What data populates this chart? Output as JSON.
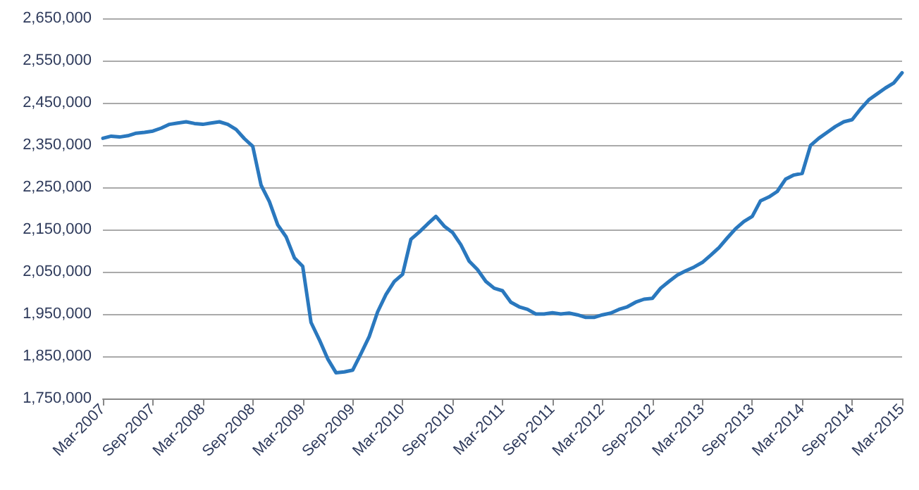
{
  "chart_data": {
    "type": "line",
    "categories": [
      "Mar-2007",
      null,
      null,
      null,
      null,
      null,
      "Sep-2007",
      null,
      null,
      null,
      null,
      null,
      "Mar-2008",
      null,
      null,
      null,
      null,
      null,
      "Sep-2008",
      null,
      null,
      null,
      null,
      null,
      "Mar-2009",
      null,
      null,
      null,
      null,
      null,
      "Sep-2009",
      null,
      null,
      null,
      null,
      null,
      "Mar-2010",
      null,
      null,
      null,
      null,
      null,
      "Sep-2010",
      null,
      null,
      null,
      null,
      null,
      "Mar-2011",
      null,
      null,
      null,
      null,
      null,
      "Sep-2011",
      null,
      null,
      null,
      null,
      null,
      "Mar-2012",
      null,
      null,
      null,
      null,
      null,
      "Sep-2012",
      null,
      null,
      null,
      null,
      null,
      "Mar-2013",
      null,
      null,
      null,
      null,
      null,
      "Sep-2013",
      null,
      null,
      null,
      null,
      null,
      "Mar-2014",
      null,
      null,
      null,
      null,
      null,
      "Sep-2014",
      null,
      null,
      null,
      null,
      null,
      "Mar-2015"
    ],
    "series": [
      {
        "color": "#2a78be",
        "values": [
          2366000,
          2371000,
          2369000,
          2372000,
          2378000,
          2380000,
          2383000,
          2390000,
          2399000,
          2402000,
          2405000,
          2401000,
          2399000,
          2402000,
          2405000,
          2399000,
          2387000,
          2365000,
          2347000,
          2255000,
          2216000,
          2161000,
          2133000,
          2083000,
          2063000,
          1930000,
          1889000,
          1844000,
          1811000,
          1813000,
          1817000,
          1856000,
          1897000,
          1955000,
          1996000,
          2027000,
          2044000,
          2127000,
          2144000,
          2163000,
          2181000,
          2158000,
          2143000,
          2114000,
          2075000,
          2055000,
          2027000,
          2011000,
          2005000,
          1978000,
          1967000,
          1961000,
          1950000,
          1950000,
          1953000,
          1950000,
          1952000,
          1948000,
          1942000,
          1942000,
          1948000,
          1952000,
          1961000,
          1967000,
          1978000,
          1985000,
          1987000,
          2011000,
          2027000,
          2042000,
          2052000,
          2061000,
          2072000,
          2089000,
          2107000,
          2130000,
          2152000,
          2169000,
          2181000,
          2218000,
          2227000,
          2240000,
          2269000,
          2279000,
          2283000,
          2349000,
          2366000,
          2380000,
          2394000,
          2405000,
          2410000,
          2435000,
          2457000,
          2471000,
          2485000,
          2497000,
          2521000
        ]
      }
    ],
    "ylim": [
      1750000,
      2650000
    ],
    "yticks": [
      {
        "value": 1750000,
        "label": "1,750,000"
      },
      {
        "value": 1850000,
        "label": "1,850,000"
      },
      {
        "value": 1950000,
        "label": "1,950,000"
      },
      {
        "value": 2050000,
        "label": "2,050,000"
      },
      {
        "value": 2150000,
        "label": "2,150,000"
      },
      {
        "value": 2250000,
        "label": "2,250,000"
      },
      {
        "value": 2350000,
        "label": "2,350,000"
      },
      {
        "value": 2450000,
        "label": "2,450,000"
      },
      {
        "value": 2550000,
        "label": "2,550,000"
      },
      {
        "value": 2650000,
        "label": "2,650,000"
      }
    ],
    "grid": "y",
    "marker": "none",
    "line_style": "solid"
  }
}
